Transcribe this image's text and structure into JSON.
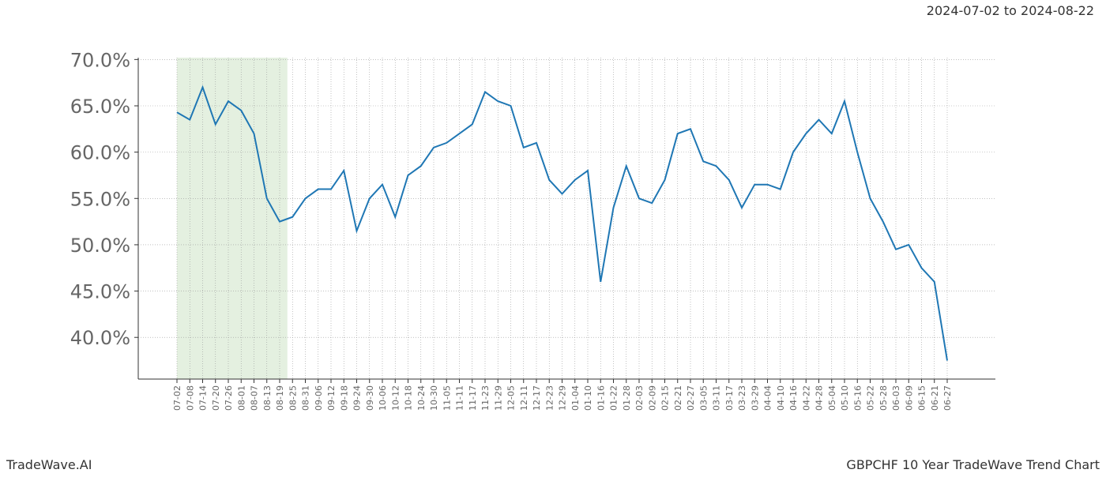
{
  "chart_data": {
    "type": "line",
    "title": "GBPCHF 10 Year TradeWave Trend Chart",
    "subtitle": "2024-07-02 to 2024-08-22",
    "brand": "TradeWave.AI",
    "categories": [
      "07-02",
      "07-08",
      "07-14",
      "07-20",
      "07-26",
      "08-01",
      "08-07",
      "08-13",
      "08-19",
      "08-25",
      "08-31",
      "09-06",
      "09-12",
      "09-18",
      "09-24",
      "09-30",
      "10-06",
      "10-12",
      "10-18",
      "10-24",
      "10-30",
      "11-05",
      "11-11",
      "11-17",
      "11-23",
      "11-29",
      "12-05",
      "12-11",
      "12-17",
      "12-23",
      "12-29",
      "01-04",
      "01-10",
      "01-16",
      "01-22",
      "01-28",
      "02-03",
      "02-09",
      "02-15",
      "02-21",
      "02-27",
      "03-05",
      "03-11",
      "03-17",
      "03-23",
      "03-29",
      "04-04",
      "04-10",
      "04-16",
      "04-22",
      "04-28",
      "05-04",
      "05-10",
      "05-16",
      "05-22",
      "05-28",
      "06-03",
      "06-09",
      "06-15",
      "06-21",
      "06-27"
    ],
    "series": [
      {
        "color": "#1f77b4",
        "values": [
          64.3,
          63.5,
          67,
          63,
          65.5,
          64.5,
          62,
          55,
          52.5,
          53,
          55,
          56,
          56,
          58,
          51.5,
          55,
          56.5,
          53,
          57.5,
          58.5,
          60.5,
          61,
          62,
          63,
          66.5,
          65.5,
          65,
          60.5,
          61,
          57,
          55.5,
          57,
          58,
          46,
          54,
          58.5,
          55,
          54.5,
          57,
          62,
          62.5,
          59,
          58.5,
          57,
          54,
          56.5,
          56.5,
          56,
          60,
          62,
          63.5,
          62,
          65.5,
          60,
          55,
          52.5,
          49.5,
          50,
          47.5,
          46,
          37.5
        ]
      }
    ],
    "ylim": [
      35.5,
      70.2
    ],
    "yticks": [
      {
        "value": 40,
        "label": "40.0%"
      },
      {
        "value": 45,
        "label": "45.0%"
      },
      {
        "value": 50,
        "label": "50.0%"
      },
      {
        "value": 55,
        "label": "55.0%"
      },
      {
        "value": 60,
        "label": "60.0%"
      },
      {
        "value": 65,
        "label": "65.0%"
      },
      {
        "value": 70,
        "label": "70.0%"
      }
    ],
    "grid": true,
    "highlight_color": "#d9ead3"
  }
}
